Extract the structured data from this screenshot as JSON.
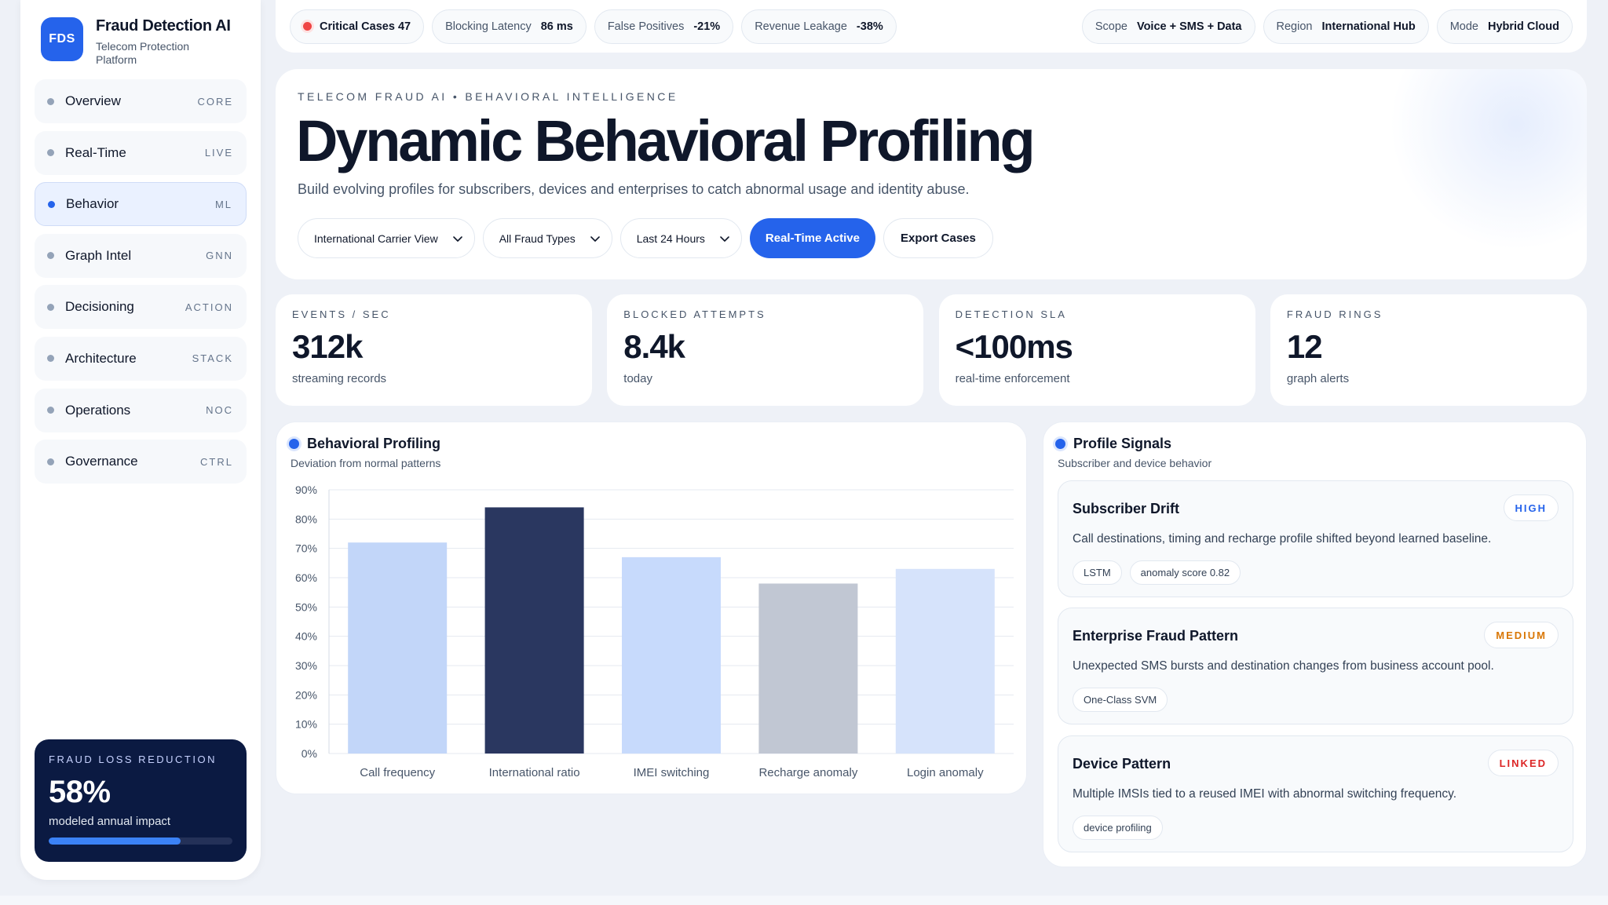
{
  "colors": {
    "accent": "#2563eb",
    "navy": "#0b1a42",
    "critical": "#ef4444",
    "high": "#2563eb",
    "medium": "#d97706",
    "linked": "#dc2626"
  },
  "sidebar": {
    "logo": "FDS",
    "title": "Fraud Detection AI",
    "subtitle": "Telecom Protection Platform",
    "items": [
      {
        "label": "Overview",
        "tag": "CORE"
      },
      {
        "label": "Real-Time",
        "tag": "LIVE"
      },
      {
        "label": "Behavior",
        "tag": "ML"
      },
      {
        "label": "Graph Intel",
        "tag": "GNN"
      },
      {
        "label": "Decisioning",
        "tag": "ACTION"
      },
      {
        "label": "Architecture",
        "tag": "STACK"
      },
      {
        "label": "Operations",
        "tag": "NOC"
      },
      {
        "label": "Governance",
        "tag": "CTRL"
      }
    ],
    "active_index": 2,
    "loss_card": {
      "kicker": "FRAUD LOSS REDUCTION",
      "value": "58%",
      "subtitle": "modeled annual impact",
      "progress": 0.72
    }
  },
  "topbar": {
    "critical": "Critical Cases 47",
    "blocking_label": "Blocking Latency",
    "blocking_value": "86 ms",
    "fp_label": "False Positives",
    "fp_value": "-21%",
    "leak_label": "Revenue Leakage",
    "leak_value": "-38%",
    "scope_label": "Scope",
    "scope_value": "Voice + SMS + Data",
    "region_label": "Region",
    "region_value": "International Hub",
    "mode_label": "Mode",
    "mode_value": "Hybrid Cloud"
  },
  "hero": {
    "kicker": "TELECOM FRAUD AI • BEHAVIORAL INTELLIGENCE",
    "title": "Dynamic Behavioral Profiling",
    "description": "Build evolving profiles for subscribers, devices and enterprises to catch abnormal usage and identity abuse.",
    "filters": {
      "view": "International Carrier View",
      "types": "All Fraud Types",
      "range": "Last 24 Hours"
    },
    "primary_button": "Real-Time Active",
    "secondary_button": "Export Cases"
  },
  "stats": [
    {
      "kicker": "EVENTS / SEC",
      "value": "312k",
      "sub": "streaming records"
    },
    {
      "kicker": "BLOCKED ATTEMPTS",
      "value": "8.4k",
      "sub": "today"
    },
    {
      "kicker": "DETECTION SLA",
      "value": "<100ms",
      "sub": "real-time enforcement"
    },
    {
      "kicker": "FRAUD RINGS",
      "value": "12",
      "sub": "graph alerts"
    }
  ],
  "chart_panel": {
    "title": "Behavioral Profiling",
    "subtitle": "Deviation from normal patterns"
  },
  "chart_data": {
    "type": "bar",
    "categories": [
      "Call frequency",
      "International ratio",
      "IMEI switching",
      "Recharge anomaly",
      "Login anomaly"
    ],
    "values": [
      72,
      84,
      67,
      58,
      63
    ],
    "bar_colors": [
      "#c2d6f9",
      "#2a3760",
      "#c7dafc",
      "#c1c7d3",
      "#d6e3fb"
    ],
    "ylim": [
      0,
      90
    ],
    "yticks": [
      0,
      10,
      20,
      30,
      40,
      50,
      60,
      70,
      80,
      90
    ],
    "ytick_labels": [
      "0%",
      "10%",
      "20%",
      "30%",
      "40%",
      "50%",
      "60%",
      "70%",
      "80%",
      "90%"
    ],
    "xlabel": "",
    "ylabel": "",
    "grid": true,
    "legend": "none"
  },
  "signals_panel": {
    "title": "Profile Signals",
    "subtitle": "Subscriber and device behavior",
    "cards": [
      {
        "title": "Subscriber Drift",
        "badge": "HIGH",
        "badge_color": "#2563eb",
        "description": "Call destinations, timing and recharge profile shifted beyond learned baseline.",
        "chips": [
          "LSTM",
          "anomaly score 0.82"
        ]
      },
      {
        "title": "Enterprise Fraud Pattern",
        "badge": "MEDIUM",
        "badge_color": "#d97706",
        "description": "Unexpected SMS bursts and destination changes from business account pool.",
        "chips": [
          "One-Class SVM"
        ]
      },
      {
        "title": "Device Pattern",
        "badge": "LINKED",
        "badge_color": "#dc2626",
        "description": "Multiple IMSIs tied to a reused IMEI with abnormal switching frequency.",
        "chips": [
          "device profiling"
        ]
      }
    ]
  }
}
